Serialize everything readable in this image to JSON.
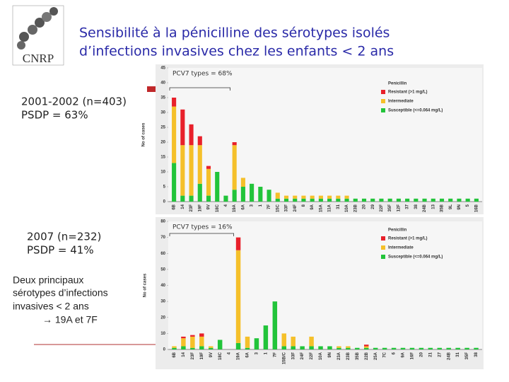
{
  "slide": {
    "title_lines": [
      "Sensibilité à la pénicilline des sérotypes isolés",
      "d’infections invasives chez les enfants < 2 ans"
    ],
    "logo": "CNRP",
    "period_1": [
      "2001-2002 (n=403)",
      "PSDP = 63%"
    ],
    "period_2": [
      "2007 (n=232)",
      "PSDP = 41%"
    ],
    "conclusion": [
      "Deux principaux",
      "sérotypes d’infections",
      "invasives < 2 ans",
      "→ 19A et 7F"
    ]
  },
  "chart_data": [
    {
      "type": "bar",
      "stacked": true,
      "annotation": "PCV7 types = 68%",
      "y_label": "No of cases",
      "legend_title": "Penicillin",
      "categories": [
        "6B",
        "14",
        "23F",
        "19F",
        "9V",
        "18C",
        "4",
        "19A",
        "6A",
        "3",
        "1",
        "7F",
        "15C",
        "33F",
        "24F",
        "8",
        "9A",
        "15A",
        "11A",
        "31",
        "10A",
        "23B",
        "20",
        "29",
        "22F",
        "35F",
        "12F",
        "37",
        "38",
        "24B",
        "13",
        "35B",
        "9L",
        "9N",
        "5",
        "16B"
      ],
      "series": [
        {
          "name": "Resistant (>1 mg/L)",
          "color": "#e8202a",
          "values": [
            3,
            12,
            7,
            3,
            1,
            0,
            0,
            1,
            0,
            0,
            0,
            0,
            0,
            0,
            0,
            0,
            0,
            0,
            0,
            0,
            0,
            0,
            0,
            0,
            0,
            0,
            0,
            0,
            0,
            0,
            0,
            0,
            0,
            0,
            0,
            0
          ]
        },
        {
          "name": "Intermediate",
          "color": "#f5c02a",
          "values": [
            19,
            17,
            17,
            13,
            9,
            0,
            0,
            15,
            3,
            0,
            0,
            0,
            2,
            1,
            1,
            1,
            1,
            1,
            1,
            1,
            1,
            0,
            0,
            0,
            0,
            0,
            0,
            0,
            0,
            0,
            0,
            0,
            0,
            0,
            0,
            0
          ]
        },
        {
          "name": "Susceptible (<=0.064 mg/L)",
          "color": "#22c43a",
          "values": [
            13,
            2,
            2,
            6,
            2,
            10,
            2,
            4,
            5,
            6,
            5,
            4,
            1,
            1,
            1,
            1,
            1,
            1,
            1,
            1,
            1,
            1,
            1,
            1,
            1,
            1,
            1,
            1,
            1,
            1,
            1,
            1,
            1,
            1,
            1,
            1
          ]
        }
      ],
      "ylim": [
        0,
        45
      ],
      "yticks": [
        0,
        5,
        10,
        15,
        20,
        25,
        30,
        35,
        40,
        45
      ],
      "grid": false
    },
    {
      "type": "bar",
      "stacked": true,
      "annotation": "PCV7 types = 16%",
      "y_label": "No of cases",
      "legend_title": "Penicillin",
      "categories": [
        "6B",
        "14",
        "23F",
        "19F",
        "9V",
        "18C",
        "4",
        "19A",
        "6A",
        "3",
        "1",
        "7F",
        "15B/C",
        "33F",
        "24F",
        "22F",
        "10A",
        "9N",
        "23A",
        "23B",
        "35B",
        "22B",
        "25A",
        "7C",
        "6",
        "9A",
        "16F",
        "20",
        "21",
        "27",
        "24B",
        "31",
        "35F",
        "38"
      ],
      "series": [
        {
          "name": "Resistant (>1 mg/L)",
          "color": "#e8202a",
          "values": [
            0,
            1,
            1,
            2,
            0,
            0,
            0,
            8,
            0,
            0,
            0,
            0,
            0,
            0,
            0,
            0,
            0,
            0,
            0,
            0,
            0,
            1,
            0,
            0,
            0,
            0,
            0,
            0,
            0,
            0,
            0,
            0,
            0,
            0
          ]
        },
        {
          "name": "Intermediate",
          "color": "#f5c02a",
          "values": [
            1,
            5,
            7,
            6,
            1,
            0,
            0,
            58,
            7,
            0,
            0,
            0,
            8,
            6,
            0,
            6,
            0,
            0,
            1,
            1,
            0,
            1,
            0,
            0,
            0,
            0,
            0,
            0,
            0,
            0,
            0,
            0,
            0,
            0
          ]
        },
        {
          "name": "Susceptible (<=0.064 mg/L)",
          "color": "#22c43a",
          "values": [
            1,
            2,
            1,
            2,
            1,
            6,
            0,
            4,
            1,
            7,
            15,
            30,
            2,
            2,
            2,
            2,
            2,
            2,
            1,
            1,
            1,
            1,
            1,
            1,
            1,
            1,
            1,
            1,
            1,
            1,
            1,
            1,
            1,
            1
          ]
        }
      ],
      "ylim": [
        0,
        80
      ],
      "yticks": [
        0,
        10,
        20,
        30,
        40,
        50,
        60,
        70,
        80
      ],
      "grid": false
    }
  ]
}
